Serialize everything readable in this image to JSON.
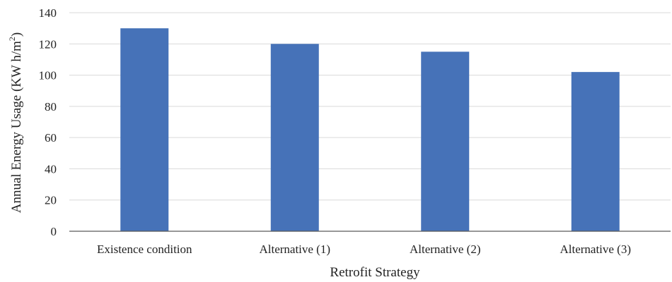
{
  "chart_data": {
    "type": "bar",
    "title": "",
    "categories": [
      "Existence condition",
      "Alternative (1)",
      "Alternative (2)",
      "Alternative (3)"
    ],
    "values": [
      130,
      120,
      115,
      102
    ],
    "xlabel": "Retrofit Strategy",
    "ylabel_main": "Annual Energy Usage (KW h/m",
    "ylabel_sup": "2",
    "ylabel_end": ")",
    "ylim": [
      0,
      140
    ],
    "yticks": [
      0,
      20,
      40,
      60,
      80,
      100,
      120,
      140
    ],
    "grid": true,
    "legend": "none",
    "colors": {
      "bar": "#4672B8",
      "grid": "#D9D9D9",
      "axis": "#595959",
      "text": "#222222"
    }
  }
}
